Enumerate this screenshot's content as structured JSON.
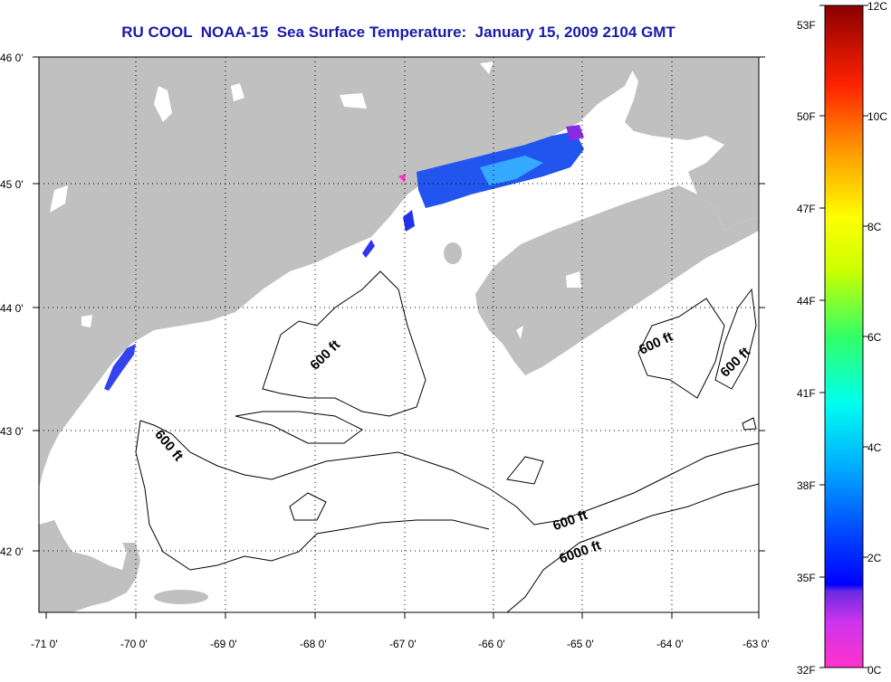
{
  "title": "RU COOL  NOAA-15  Sea Surface Temperature:  January 15, 2009 2104 GMT",
  "map": {
    "lon_labels": [
      "-71 0'",
      "-70 0'",
      "-69 0'",
      "-68 0'",
      "-67 0'",
      "-66 0'",
      "-65 0'",
      "-64 0'",
      "-63 0'"
    ],
    "lat_labels": [
      "46 0'",
      "45 0'",
      "44 0'",
      "43 0'",
      "42 0'"
    ],
    "lon_range": [
      -71,
      -63
    ],
    "lat_range": [
      41.5,
      46
    ],
    "grid": "dotted",
    "land_color": "#c0c0c0",
    "water_color": "#ffffff",
    "contour_labels": [
      "600 ft",
      "600 ft",
      "600 ft",
      "600 ft",
      "600 ft",
      "6000 ft"
    ]
  },
  "colorbar": {
    "fahrenheit_labels": [
      "53F",
      "50F",
      "47F",
      "44F",
      "41F",
      "38F",
      "35F",
      "32F"
    ],
    "celsius_labels": [
      "12C",
      "10C",
      "8C",
      "6C",
      "4C",
      "2C",
      "0C"
    ],
    "colors": [
      "#8b0000",
      "#ff0000",
      "#ff8c00",
      "#ffff00",
      "#7fff00",
      "#00ffff",
      "#0066ff",
      "#0000ff",
      "#8a2be2",
      "#ff33cc"
    ]
  }
}
